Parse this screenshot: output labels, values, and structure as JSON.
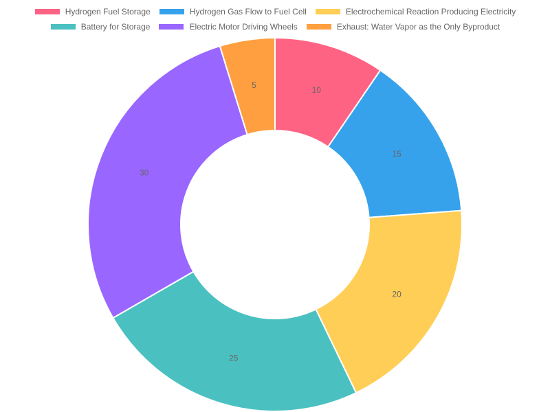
{
  "chart_data": {
    "type": "pie",
    "variant": "doughnut",
    "title": "",
    "legend_position": "top",
    "categories": [
      "Hydrogen Fuel Storage",
      "Hydrogen Gas Flow to Fuel Cell",
      "Electrochemical Reaction Producing Electricity",
      "Battery for Storage",
      "Electric Motor Driving Wheels",
      "Exhaust: Water Vapor as the Only Byproduct"
    ],
    "values": [
      10,
      15,
      20,
      25,
      30,
      5
    ],
    "colors": [
      "#ff6384",
      "#36a2eb",
      "#ffce56",
      "#4bc0c0",
      "#9966ff",
      "#ff9f40"
    ],
    "show_data_labels": true
  }
}
